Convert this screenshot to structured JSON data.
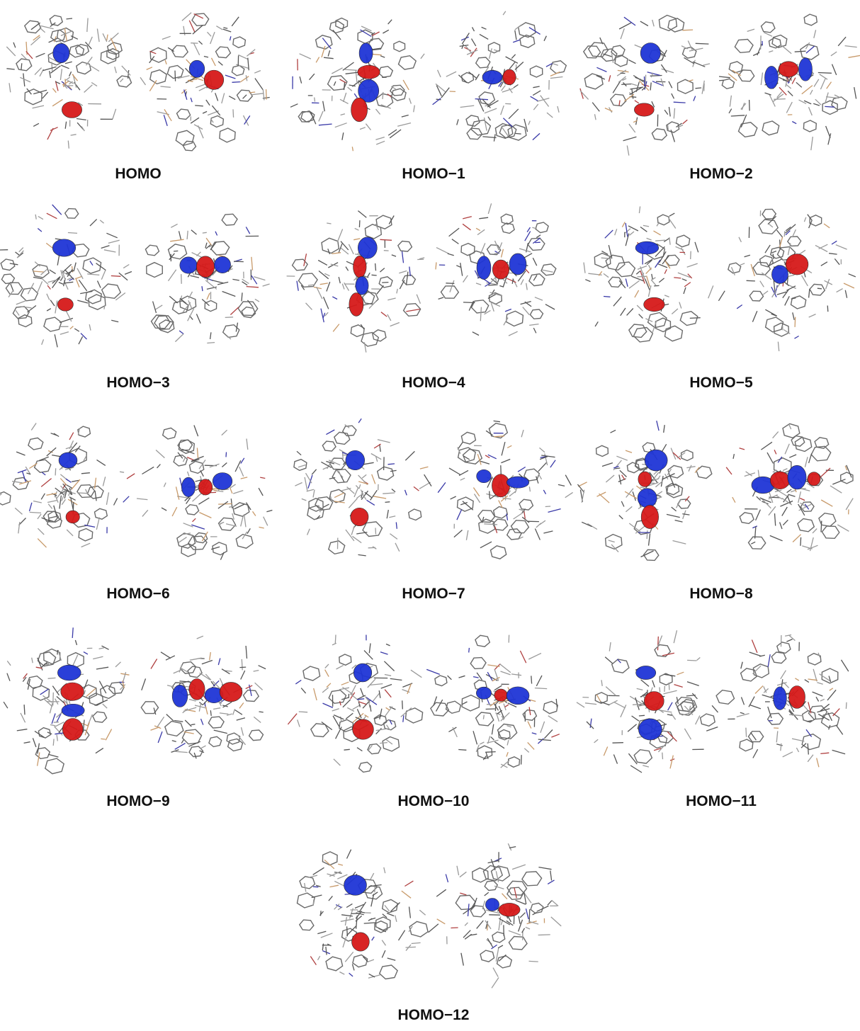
{
  "panels": [
    {
      "label": "HOMO"
    },
    {
      "label": "HOMO−1"
    },
    {
      "label": "HOMO−2"
    },
    {
      "label": "HOMO−3"
    },
    {
      "label": "HOMO−4"
    },
    {
      "label": "HOMO−5"
    },
    {
      "label": "HOMO−6"
    },
    {
      "label": "HOMO−7"
    },
    {
      "label": "HOMO−8"
    },
    {
      "label": "HOMO−9"
    },
    {
      "label": "HOMO−10"
    },
    {
      "label": "HOMO−11"
    },
    {
      "label": "HOMO−12"
    }
  ]
}
